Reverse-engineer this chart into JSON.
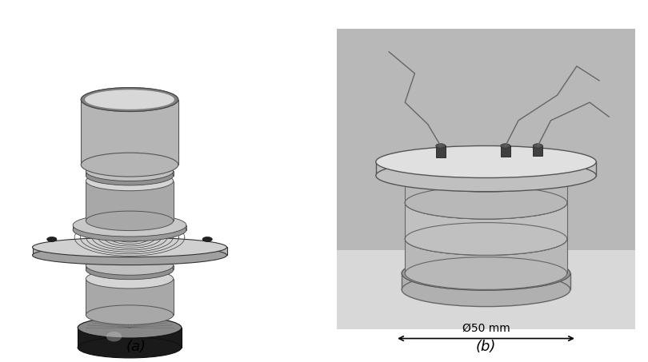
{
  "background_color": "#ffffff",
  "label_a": "(a)",
  "label_b": "(b)",
  "label_fontsize": 13,
  "dimension_text": "Ø50 mm",
  "arrow_color": "#000000",
  "fig_width": 8.1,
  "fig_height": 4.53,
  "dpi": 100,
  "photo_bg": "#c8c8c8",
  "photo_border": "#aaaaaa",
  "photo_floor": "#e0e0e0"
}
